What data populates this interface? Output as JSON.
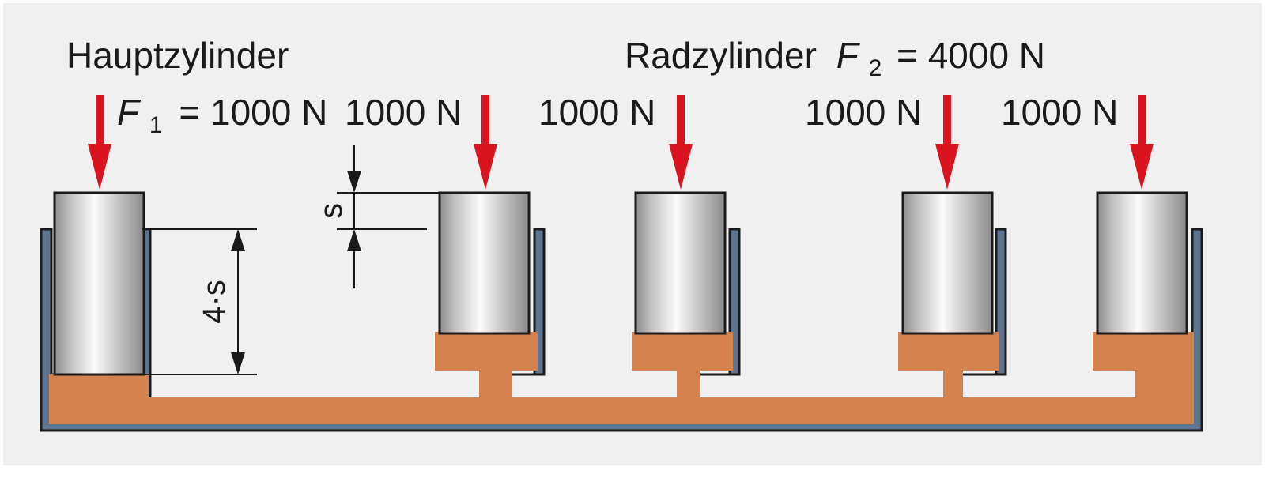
{
  "labels": {
    "master_title": "Hauptzylinder",
    "wheel_title": "Radzylinder",
    "force_symbol": "F",
    "master_subscript": "1",
    "wheel_subscript": "2",
    "master_force_value": "= 1000 N",
    "wheel_force_value": "= 4000 N",
    "wheel_forces": [
      "1000 N",
      "1000 N",
      "1000 N",
      "1000 N"
    ],
    "stroke_small": "s",
    "stroke_large": "4·s"
  },
  "colors": {
    "background": "#f0f0f0",
    "fluid": "#d4834f",
    "wall": "#5f7491",
    "arrow": "#d9141e",
    "outline": "#1a1a1a"
  },
  "icons": {
    "force_arrow": "down-arrow-icon",
    "piston": "cylinder-piston-icon"
  }
}
